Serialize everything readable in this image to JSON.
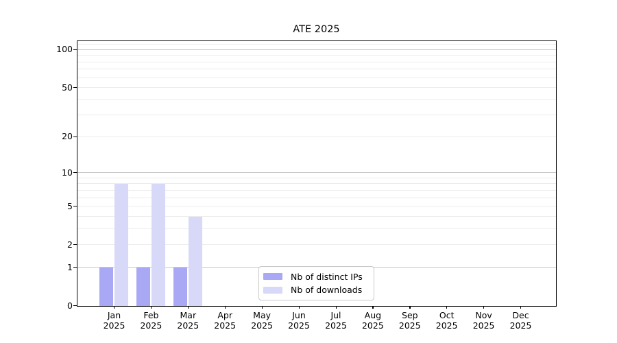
{
  "chart_data": {
    "type": "bar",
    "title": "ATE 2025",
    "categories": [
      "Jan",
      "Feb",
      "Mar",
      "Apr",
      "May",
      "Jun",
      "Jul",
      "Aug",
      "Sep",
      "Oct",
      "Nov",
      "Dec"
    ],
    "year_line": "2025",
    "series": [
      {
        "name": "Nb of distinct IPs",
        "color": "#a8a8f4",
        "values": [
          1,
          1,
          1,
          0,
          0,
          0,
          0,
          0,
          0,
          0,
          0,
          0
        ]
      },
      {
        "name": "Nb of downloads",
        "color": "#d8d8f8",
        "values": [
          8,
          8,
          4,
          0,
          0,
          0,
          0,
          0,
          0,
          0,
          0,
          0
        ]
      }
    ],
    "yscale": "log1p",
    "ylim": [
      0,
      116
    ],
    "yticks": [
      0,
      1,
      2,
      5,
      10,
      20,
      50,
      100
    ],
    "yticks_minor": [
      2,
      3,
      4,
      5,
      6,
      7,
      8,
      9,
      20,
      30,
      40,
      50,
      60,
      70,
      80,
      90,
      110
    ],
    "grid": true,
    "legend_position": "lower center",
    "colors": {
      "major_grid": "#c8c8c8",
      "minor_grid": "#ececec",
      "spine": "#000000",
      "text": "#000000",
      "background": "#ffffff"
    }
  }
}
